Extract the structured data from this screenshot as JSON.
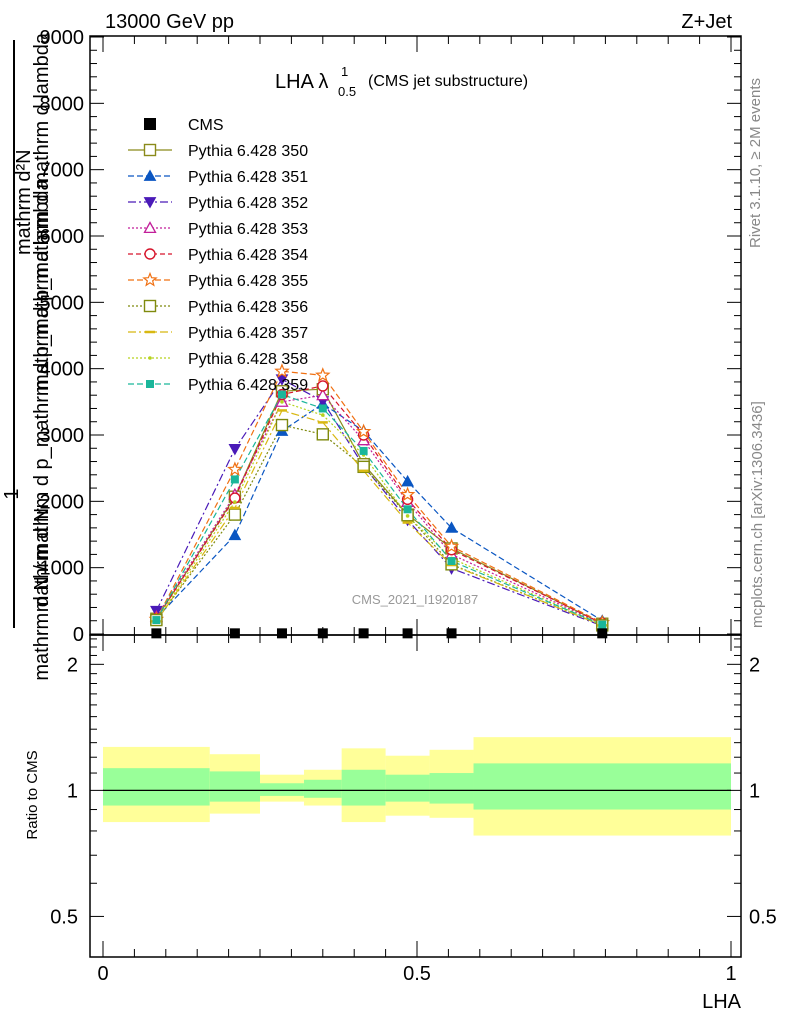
{
  "header": {
    "left": "13000 GeV pp",
    "right": "Z+Jet"
  },
  "side": {
    "version": "Rivet 3.1.10, ≥ 2M events",
    "source": "mcplots.cern.ch [arXiv:1306.3436]"
  },
  "chart_data": {
    "type": "line",
    "title_main": "LHA λ",
    "title_sup": "1",
    "title_sub": "0.5",
    "title_note": "(CMS jet substructure)",
    "xlabel": "LHA",
    "ylabel_top": "mathrm d²N",
    "ylabel_top2": "mathrm d p_mathrm d mathrm d lambda",
    "ylabel_num": "1",
    "ylabel_bottom": "mathrm d N / mathrm d p_mathrm d p_mathrm d lambda",
    "ylabel_bottom2": "mathrm d N",
    "ratio_ylabel": "Ratio to CMS",
    "watermark": "CMS_2021_I1920187",
    "xlim": [
      0,
      1
    ],
    "ylim": [
      0,
      9000
    ],
    "ratio_ylim": [
      0.4,
      2.35
    ],
    "x_ticks": [
      {
        "v": 0,
        "label": "0"
      },
      {
        "v": 0.5,
        "label": "0.5"
      },
      {
        "v": 1,
        "label": "1"
      }
    ],
    "y_ticks": [
      {
        "v": 0,
        "label": "0"
      },
      {
        "v": 1000,
        "label": "1000"
      },
      {
        "v": 2000,
        "label": "2000"
      },
      {
        "v": 3000,
        "label": "3000"
      },
      {
        "v": 4000,
        "label": "4000"
      },
      {
        "v": 5000,
        "label": "5000"
      },
      {
        "v": 6000,
        "label": "6000"
      },
      {
        "v": 7000,
        "label": "7000"
      },
      {
        "v": 8000,
        "label": "8000"
      },
      {
        "v": 9000,
        "label": "9000"
      }
    ],
    "ratio_ticks": [
      {
        "v": 0.5,
        "label": "0.5"
      },
      {
        "v": 1,
        "label": "1"
      },
      {
        "v": 2,
        "label": "2"
      }
    ],
    "x": [
      0.085,
      0.21,
      0.285,
      0.35,
      0.415,
      0.485,
      0.555,
      0.795
    ],
    "data": {
      "name": "CMS",
      "color": "#000000",
      "values": [
        10,
        10,
        10,
        10,
        10,
        10,
        10,
        10
      ]
    },
    "ratio_bins": [
      {
        "x0": 0.0,
        "x1": 0.17,
        "inner": [
          0.92,
          1.13
        ],
        "outer": [
          0.84,
          1.27
        ]
      },
      {
        "x0": 0.17,
        "x1": 0.25,
        "inner": [
          0.94,
          1.11
        ],
        "outer": [
          0.88,
          1.22
        ]
      },
      {
        "x0": 0.25,
        "x1": 0.32,
        "inner": [
          0.97,
          1.04
        ],
        "outer": [
          0.94,
          1.09
        ]
      },
      {
        "x0": 0.32,
        "x1": 0.38,
        "inner": [
          0.96,
          1.06
        ],
        "outer": [
          0.92,
          1.12
        ]
      },
      {
        "x0": 0.38,
        "x1": 0.45,
        "inner": [
          0.92,
          1.12
        ],
        "outer": [
          0.84,
          1.26
        ]
      },
      {
        "x0": 0.45,
        "x1": 0.52,
        "inner": [
          0.94,
          1.09
        ],
        "outer": [
          0.87,
          1.21
        ]
      },
      {
        "x0": 0.52,
        "x1": 0.59,
        "inner": [
          0.93,
          1.1
        ],
        "outer": [
          0.86,
          1.25
        ]
      },
      {
        "x0": 0.59,
        "x1": 1.0,
        "inner": [
          0.9,
          1.16
        ],
        "outer": [
          0.78,
          1.34
        ]
      }
    ],
    "series": [
      {
        "name": "Pythia 6.428 350",
        "color": "#8a8a1a",
        "dash": "none",
        "marker": "square-open",
        "values": [
          230,
          2070,
          3660,
          3690,
          2560,
          1800,
          1290,
          155
        ]
      },
      {
        "name": "Pythia 6.428 351",
        "color": "#0a56c2",
        "dash": "6,3",
        "marker": "triangle-up",
        "values": [
          240,
          1490,
          3060,
          3470,
          3060,
          2300,
          1600,
          200
        ]
      },
      {
        "name": "Pythia 6.428 352",
        "color": "#4a1ab8",
        "dash": "8,3,2,3",
        "marker": "triangle-down",
        "values": [
          350,
          2790,
          3840,
          3510,
          2530,
          1720,
          990,
          120
        ]
      },
      {
        "name": "Pythia 6.428 353",
        "color": "#c21f9a",
        "dash": "2,2",
        "marker": "triangle-up-open",
        "values": [
          260,
          2100,
          3500,
          3600,
          2920,
          1990,
          1200,
          150
        ]
      },
      {
        "name": "Pythia 6.428 354",
        "color": "#d6152c",
        "dash": "5,3",
        "marker": "circle-open",
        "values": [
          230,
          2050,
          3610,
          3740,
          3000,
          2030,
          1270,
          160
        ]
      },
      {
        "name": "Pythia 6.428 355",
        "color": "#f07012",
        "dash": "6,3",
        "marker": "star-open",
        "values": [
          220,
          2480,
          3960,
          3900,
          3050,
          2100,
          1320,
          170
        ]
      },
      {
        "name": "Pythia 6.428 356",
        "color": "#7f8a0e",
        "dash": "2,2",
        "marker": "square-open",
        "values": [
          210,
          1800,
          3150,
          3010,
          2520,
          1790,
          1050,
          130
        ]
      },
      {
        "name": "Pythia 6.428 357",
        "color": "#d8b812",
        "dash": "8,3,2,3",
        "marker": "dash",
        "values": [
          190,
          1900,
          3370,
          3190,
          2460,
          1680,
          1040,
          130
        ]
      },
      {
        "name": "Pythia 6.428 358",
        "color": "#b6d21e",
        "dash": "2,2",
        "marker": "dot",
        "values": [
          200,
          1990,
          3500,
          3300,
          2700,
          1780,
          1140,
          140
        ]
      },
      {
        "name": "Pythia 6.428 359",
        "color": "#1ab69a",
        "dash": "6,3",
        "marker": "square",
        "values": [
          210,
          2330,
          3610,
          3400,
          2760,
          1880,
          1100,
          140
        ]
      }
    ]
  }
}
